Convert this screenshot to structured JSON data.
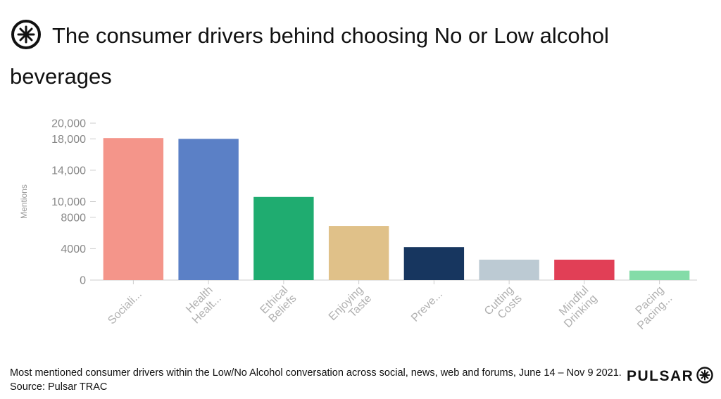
{
  "header": {
    "title": "The consumer drivers behind choosing No or Low alcohol beverages",
    "logo_icon": "asterisk-circle-icon"
  },
  "chart_data": {
    "type": "bar",
    "categories": [
      "Sociali...",
      "Health Healt...",
      "Ethical Beliefs",
      "Enjoying Taste",
      "Preve...",
      "Cutting Costs",
      "Mindful Drinking",
      "Pacing Pacing..."
    ],
    "category_lines": [
      [
        "Sociali..."
      ],
      [
        "Health",
        "Healt..."
      ],
      [
        "Ethical",
        "Beliefs"
      ],
      [
        "Enjoying",
        "Taste"
      ],
      [
        "Preve..."
      ],
      [
        "Cutting",
        "Costs"
      ],
      [
        "Mindful",
        "Drinking"
      ],
      [
        "Pacing",
        "Pacing..."
      ]
    ],
    "values": [
      18100,
      18000,
      10600,
      6900,
      4200,
      2600,
      2600,
      1200
    ],
    "colors": [
      "#f4958a",
      "#5b80c6",
      "#1fac70",
      "#e0c189",
      "#17365f",
      "#bccad3",
      "#e13f56",
      "#84dca8"
    ],
    "ylabel": "Mentions",
    "xlabel": "",
    "ylim": [
      0,
      20000
    ],
    "yticks": [
      0,
      4000,
      8000,
      10000,
      14000,
      18000,
      20000
    ],
    "ytick_labels": [
      "0",
      "4000",
      "8000",
      "10,000",
      "14,000",
      "18,000",
      "20,000"
    ],
    "grid": false
  },
  "footer": {
    "caption": "Most mentioned consumer drivers within the Low/No Alcohol conversation across social, news, web and forums, June 14 – Nov 9 2021. Source: Pulsar TRAC",
    "brand": "PULSAR",
    "brand_icon": "asterisk-circle-icon"
  }
}
